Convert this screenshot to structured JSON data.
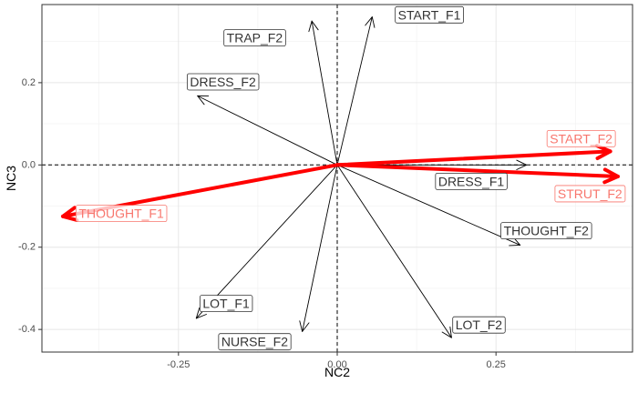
{
  "chart_data": {
    "type": "biplot",
    "xlabel": "NC2",
    "ylabel": "NC3",
    "xlim": [
      -0.465,
      0.465
    ],
    "ylim": [
      -0.455,
      0.39
    ],
    "x_ticks": [
      -0.25,
      0.0,
      0.25
    ],
    "x_tick_labels": [
      "-0.25",
      "0.00",
      "0.25"
    ],
    "y_ticks": [
      -0.4,
      -0.2,
      0.0,
      0.2
    ],
    "y_tick_labels": [
      "-0.4",
      "-0.2",
      "0.0",
      "0.2"
    ],
    "grid": true,
    "reference_lines": {
      "x": 0,
      "y": 0,
      "style": "dashed"
    },
    "colors": {
      "default": "#000000",
      "highlight": "#ff0000",
      "label_highlight": "#f8766d",
      "label_default": "#333333"
    },
    "vectors": [
      {
        "label": "START_F1",
        "x": 0.055,
        "y": 0.36,
        "label_x": 0.145,
        "label_y": 0.365,
        "highlight": false
      },
      {
        "label": "TRAP_F2",
        "x": -0.04,
        "y": 0.35,
        "label_x": -0.13,
        "label_y": 0.309,
        "highlight": false
      },
      {
        "label": "DRESS_F2",
        "x": -0.22,
        "y": 0.168,
        "label_x": -0.18,
        "label_y": 0.202,
        "highlight": false
      },
      {
        "label": "START_F2",
        "x": 0.43,
        "y": 0.033,
        "label_x": 0.384,
        "label_y": 0.064,
        "highlight": true
      },
      {
        "label": "DRESS_F1",
        "x": 0.298,
        "y": 0.0,
        "label_x": 0.211,
        "label_y": -0.04,
        "highlight": false
      },
      {
        "label": "STRUT_F2",
        "x": 0.442,
        "y": -0.028,
        "label_x": 0.398,
        "label_y": -0.07,
        "highlight": true
      },
      {
        "label": "THOUGHT_F1",
        "x": -0.432,
        "y": -0.125,
        "label_x": -0.34,
        "label_y": -0.118,
        "highlight": true
      },
      {
        "label": "THOUGHT_F2",
        "x": 0.288,
        "y": -0.195,
        "label_x": 0.329,
        "label_y": -0.16,
        "highlight": false
      },
      {
        "label": "LOT_F1",
        "x": -0.222,
        "y": -0.373,
        "label_x": -0.175,
        "label_y": -0.337,
        "highlight": false
      },
      {
        "label": "NURSE_F2",
        "x": -0.055,
        "y": -0.405,
        "label_x": -0.13,
        "label_y": -0.43,
        "highlight": false
      },
      {
        "label": "LOT_F2",
        "x": 0.18,
        "y": -0.42,
        "label_x": 0.223,
        "label_y": -0.389,
        "highlight": false
      }
    ]
  }
}
